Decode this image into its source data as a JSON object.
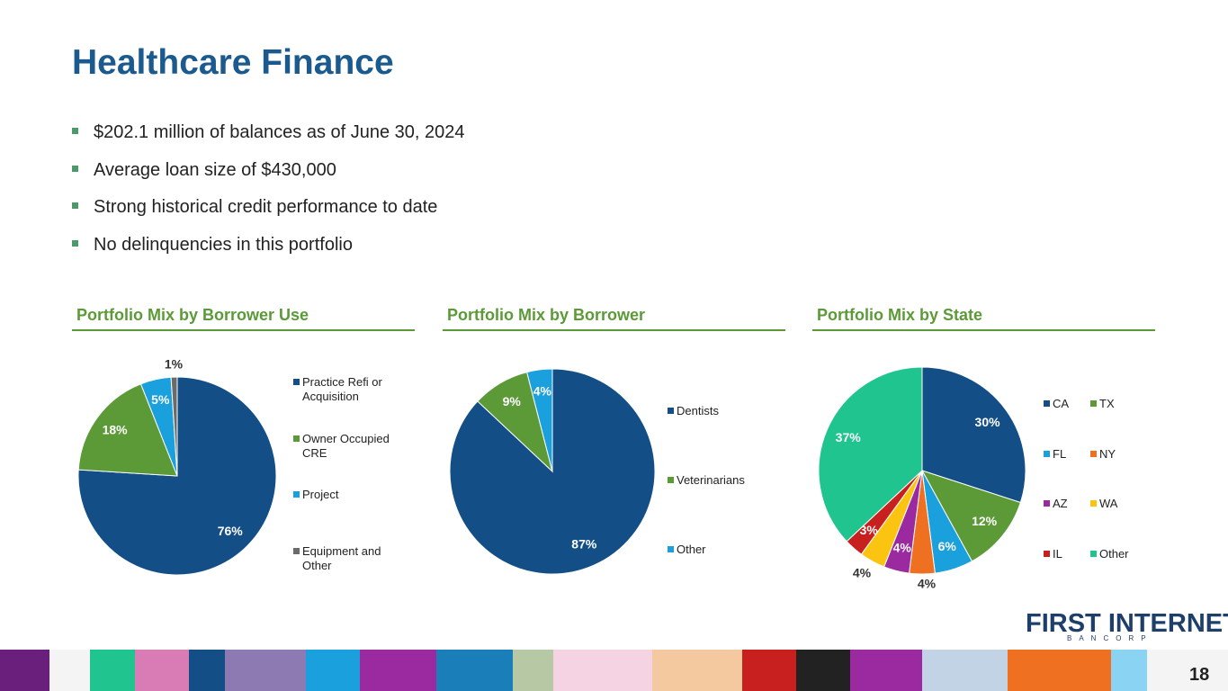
{
  "slide": {
    "title": "Healthcare Finance",
    "bullets": [
      "$202.1 million of balances as of June 30, 2024",
      "Average loan size of $430,000",
      "Strong historical credit performance to date",
      "No delinquencies in this portfolio"
    ],
    "logo": {
      "name": "FIRST INTERNET",
      "subtitle": "BANCORP"
    },
    "page_number": 18
  },
  "chart_data": [
    {
      "type": "pie",
      "title": "Portfolio Mix by Borrower Use",
      "categories": [
        "Practice Refi or Acquisition",
        "Owner Occupied CRE",
        "Project",
        "Equipment and Other"
      ],
      "values": [
        76,
        18,
        5,
        1
      ],
      "value_labels": [
        "76%",
        "18%",
        "5%",
        "1%"
      ],
      "colors": [
        "#134f86",
        "#5b9a37",
        "#1aa0dc",
        "#6b6b6b"
      ]
    },
    {
      "type": "pie",
      "title": "Portfolio Mix by Borrower",
      "categories": [
        "Dentists",
        "Veterinarians",
        "Other"
      ],
      "values": [
        87,
        9,
        4
      ],
      "value_labels": [
        "87%",
        "9%",
        "4%"
      ],
      "colors": [
        "#134f86",
        "#5b9a37",
        "#1aa0dc"
      ]
    },
    {
      "type": "pie",
      "title": "Portfolio Mix by State",
      "categories": [
        "CA",
        "TX",
        "FL",
        "NY",
        "AZ",
        "WA",
        "IL",
        "Other"
      ],
      "values": [
        30,
        12,
        6,
        4,
        4,
        4,
        3,
        37
      ],
      "value_labels": [
        "30%",
        "12%",
        "6%",
        "4%",
        "4%",
        "4%",
        "3%",
        "37%"
      ],
      "colors": [
        "#134f86",
        "#5b9a37",
        "#1aa0dc",
        "#f07022",
        "#9b2aa0",
        "#fbc410",
        "#c8201e",
        "#1fc48e"
      ]
    }
  ]
}
